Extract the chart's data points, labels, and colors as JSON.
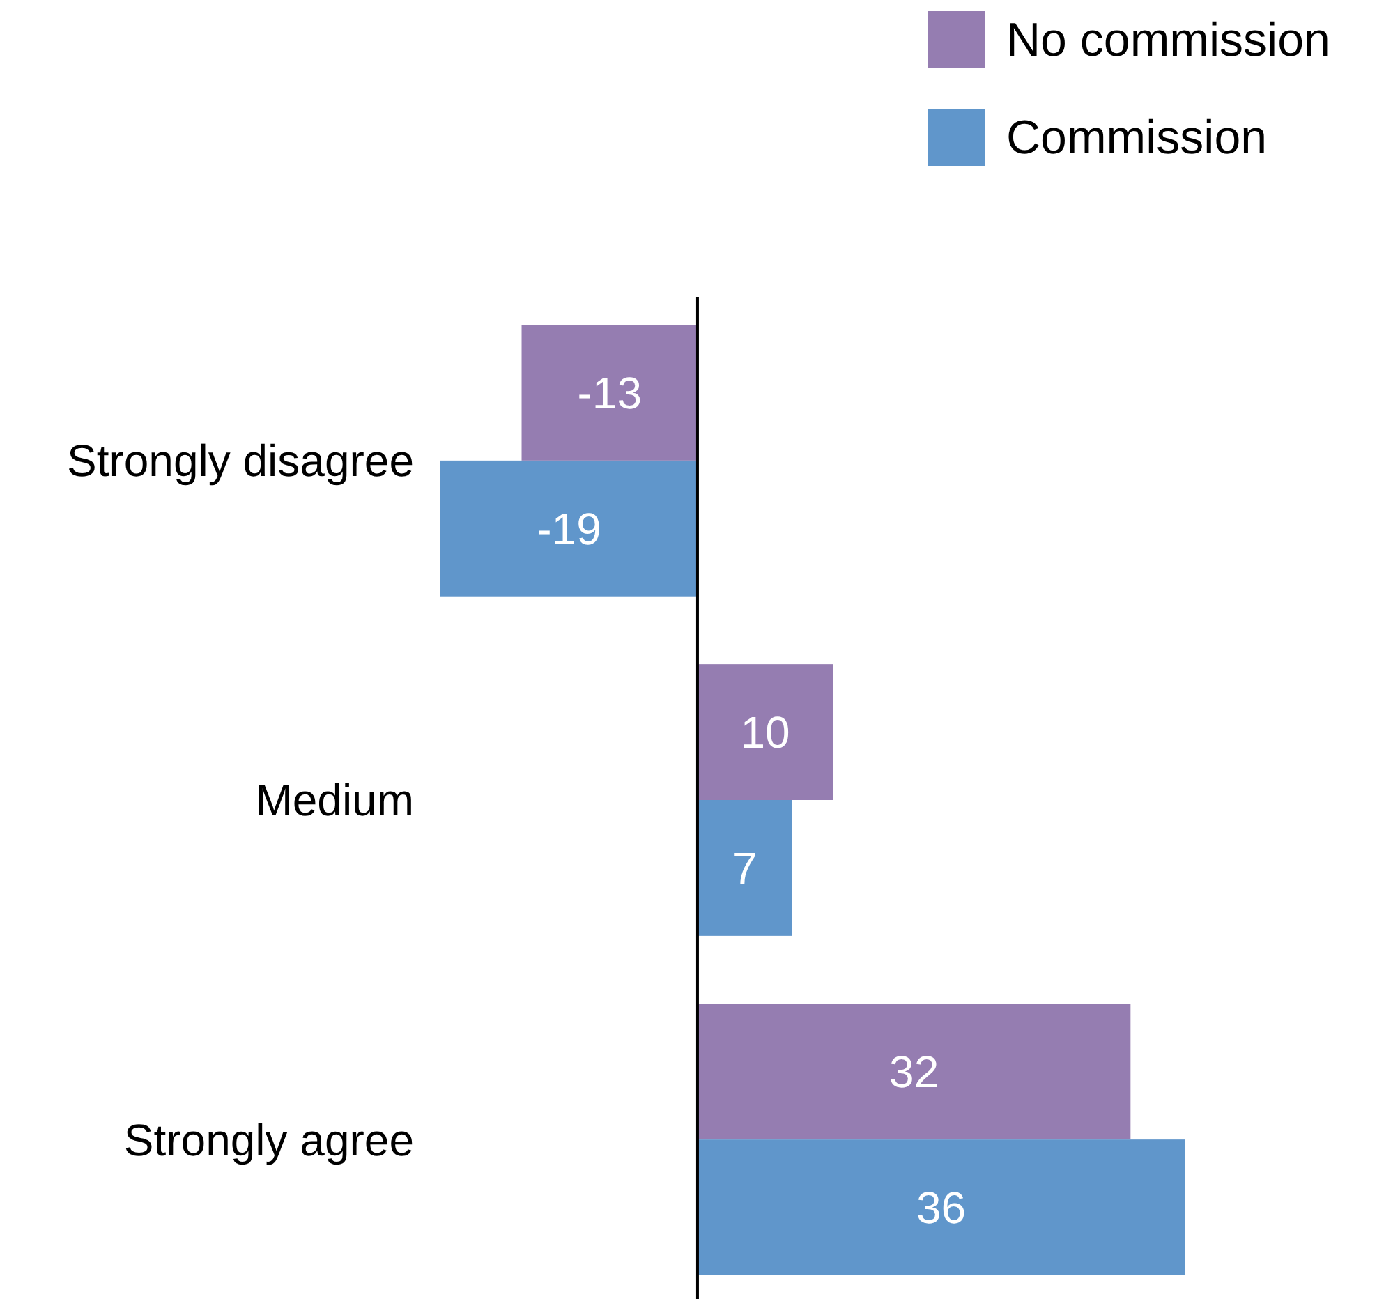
{
  "chart_data": {
    "type": "bar",
    "orientation": "horizontal",
    "categories": [
      "Strongly disagree",
      "Medium",
      "Strongly agree"
    ],
    "series": [
      {
        "name": "No commission",
        "color": "#957db1",
        "values": [
          -13,
          10,
          32
        ]
      },
      {
        "name": "Commission",
        "color": "#6096cb",
        "values": [
          -19,
          7,
          36
        ]
      }
    ],
    "tick_labels": "y",
    "data_labels": true,
    "legend": "top right"
  }
}
